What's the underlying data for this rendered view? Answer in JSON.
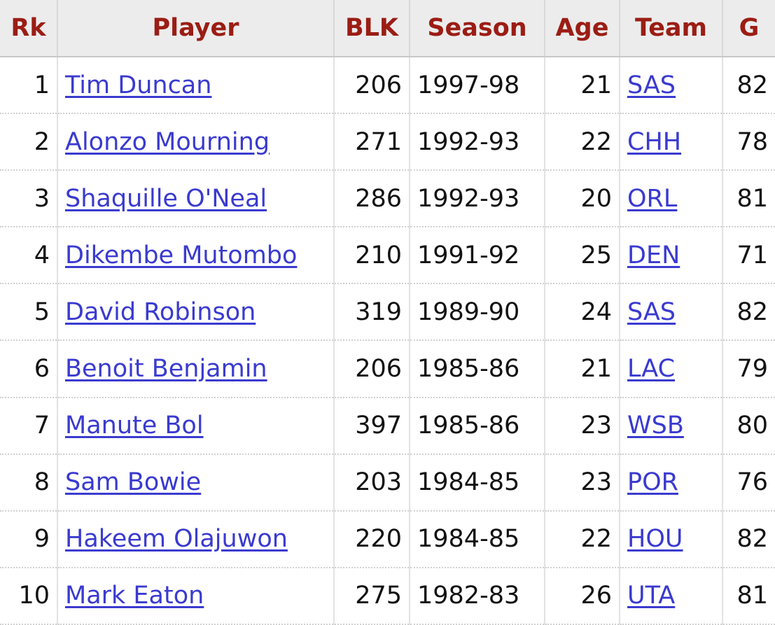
{
  "table": {
    "headers": [
      "Rk",
      "Player",
      "BLK",
      "Season",
      "Age",
      "Team",
      "G"
    ],
    "rows": [
      [
        "1",
        "Tim Duncan",
        "206",
        "1997-98",
        "21",
        "SAS",
        "82"
      ],
      [
        "2",
        "Alonzo Mourning",
        "271",
        "1992-93",
        "22",
        "CHH",
        "78"
      ],
      [
        "3",
        "Shaquille O'Neal",
        "286",
        "1992-93",
        "20",
        "ORL",
        "81"
      ],
      [
        "4",
        "Dikembe Mutombo",
        "210",
        "1991-92",
        "25",
        "DEN",
        "71"
      ],
      [
        "5",
        "David Robinson",
        "319",
        "1989-90",
        "24",
        "SAS",
        "82"
      ],
      [
        "6",
        "Benoit Benjamin",
        "206",
        "1985-86",
        "21",
        "LAC",
        "79"
      ],
      [
        "7",
        "Manute Bol",
        "397",
        "1985-86",
        "23",
        "WSB",
        "80"
      ],
      [
        "8",
        "Sam Bowie",
        "203",
        "1984-85",
        "23",
        "POR",
        "76"
      ],
      [
        "9",
        "Hakeem Olajuwon",
        "220",
        "1984-85",
        "22",
        "HOU",
        "82"
      ],
      [
        "10",
        "Mark Eaton",
        "275",
        "1982-83",
        "26",
        "UTA",
        "81"
      ]
    ]
  }
}
